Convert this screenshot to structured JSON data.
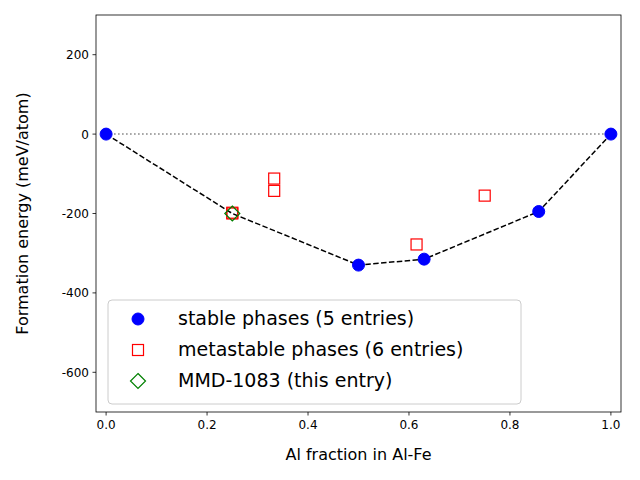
{
  "chart_data": {
    "type": "scatter",
    "x_label": "Al fraction in Al-Fe",
    "y_label": "Formation energy (meV/atom)",
    "xlim": [
      -0.02,
      1.02
    ],
    "ylim": [
      -700,
      300
    ],
    "xticks": [
      {
        "value": 0,
        "label": "0.0"
      },
      {
        "value": 0.2,
        "label": "0.2"
      },
      {
        "value": 0.4,
        "label": "0.4"
      },
      {
        "value": 0.6,
        "label": "0.6"
      },
      {
        "value": 0.8,
        "label": "0.8"
      },
      {
        "value": 1,
        "label": "1.0"
      }
    ],
    "yticks": [
      -600,
      -400,
      -200,
      0,
      200
    ],
    "legend": "lower left",
    "series": [
      {
        "type": "line",
        "line_style": "dotted",
        "color": "#808080",
        "x": [
          0,
          1
        ],
        "values": [
          0,
          0
        ]
      },
      {
        "type": "line",
        "line_style": "dashed",
        "color": "#000000",
        "x": [
          0,
          0.25,
          0.5,
          0.63,
          0.857,
          1
        ],
        "values": [
          0,
          -200,
          -330,
          -315,
          -195,
          0
        ]
      },
      {
        "name": "stable phases (5 entries)",
        "type": "scatter",
        "marker": "circle",
        "color": "#0000ff",
        "x": [
          0,
          0.5,
          0.63,
          0.857,
          1
        ],
        "values": [
          0,
          -330,
          -315,
          -195,
          0
        ]
      },
      {
        "name": "metastable phases (6 entries)",
        "type": "scatter",
        "marker": "open-square",
        "color": "#ff0000",
        "x": [
          0.25,
          0.25,
          0.333,
          0.333,
          0.615,
          0.75
        ],
        "values": [
          -198,
          -200,
          -112,
          -143,
          -278,
          -155
        ]
      },
      {
        "name": "MMD-1083 (this entry)",
        "type": "scatter",
        "marker": "open-diamond",
        "color": "#008000",
        "x": [
          0.25
        ],
        "values": [
          -200
        ]
      }
    ]
  }
}
